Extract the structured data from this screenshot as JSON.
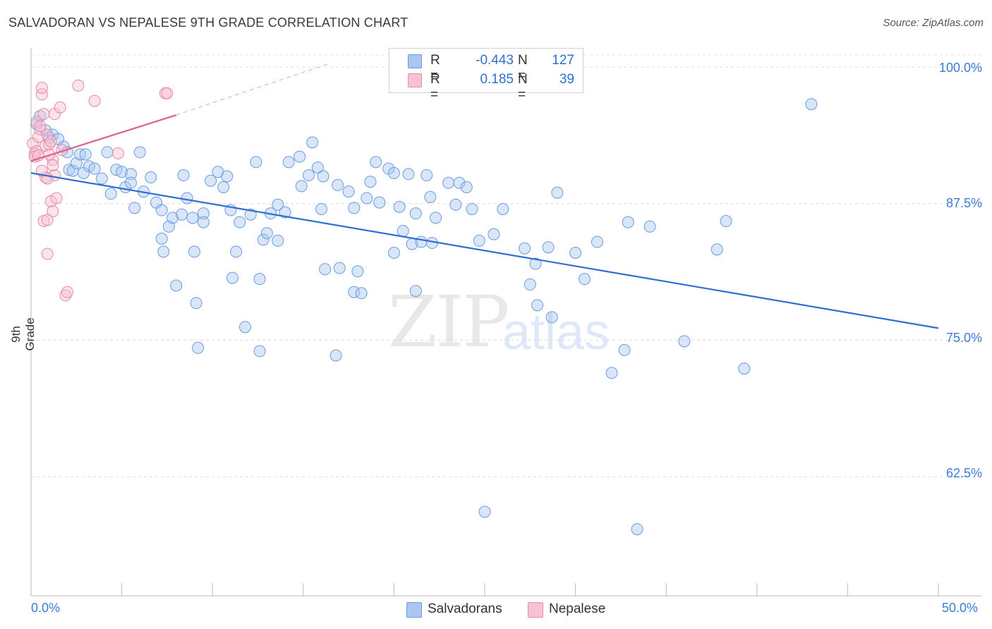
{
  "header": {
    "title": "SALVADORAN VS NEPALESE 9TH GRADE CORRELATION CHART",
    "source": "Source: ZipAtlas.com"
  },
  "watermark": {
    "zip": "ZIP",
    "atlas": "atlas"
  },
  "legend": {
    "rows": [
      {
        "r_label": "R =",
        "r_value": "-0.443",
        "n_label": "N =",
        "n_value": "127",
        "color": "#a9c8ef",
        "border": "#6a9be0"
      },
      {
        "r_label": "R =",
        "r_value": "0.185",
        "n_label": "N =",
        "n_value": "39",
        "color": "#f7c2d3",
        "border": "#e68aa6"
      }
    ]
  },
  "bottom_legend": {
    "items": [
      {
        "label": "Salvadorans",
        "color": "#a9c8ef",
        "border": "#6a9be0"
      },
      {
        "label": "Nepalese",
        "color": "#f7c2d3",
        "border": "#e68aa6"
      }
    ]
  },
  "axes": {
    "y_label": "9th Grade",
    "y_ticks": [
      "100.0%",
      "87.5%",
      "75.0%",
      "62.5%"
    ],
    "x_ticks": [
      "0.0%",
      "50.0%"
    ]
  },
  "chart_data": {
    "type": "scatter",
    "title": "SALVADORAN VS NEPALESE 9TH GRADE CORRELATION CHART",
    "xlabel": "",
    "ylabel": "9th Grade",
    "xlim": [
      0,
      50
    ],
    "ylim": [
      51.6,
      101.1
    ],
    "x_tick_values": [
      0,
      50
    ],
    "y_tick_values": [
      100,
      87.5,
      75,
      62.5
    ],
    "grid": true,
    "series": [
      {
        "name": "Salvadorans",
        "color": "#6a9be0",
        "fill": "rgba(169,200,239,0.45)",
        "trend": {
          "x0": 0,
          "y0": 90.3,
          "x1": 50,
          "y1": 76.1,
          "color": "#2f6fcf"
        },
        "points": [
          [
            0.3,
            94.8
          ],
          [
            0.5,
            95.5
          ],
          [
            0.8,
            94.2
          ],
          [
            1.0,
            93.5
          ],
          [
            1.2,
            93.8
          ],
          [
            1.5,
            93.4
          ],
          [
            1.8,
            92.7
          ],
          [
            2.0,
            92.2
          ],
          [
            2.1,
            90.6
          ],
          [
            2.3,
            90.5
          ],
          [
            2.5,
            91.2
          ],
          [
            2.7,
            92.0
          ],
          [
            2.9,
            90.3
          ],
          [
            3.2,
            90.9
          ],
          [
            3.5,
            90.7
          ],
          [
            3.9,
            89.8
          ],
          [
            4.2,
            92.2
          ],
          [
            4.4,
            88.4
          ],
          [
            4.7,
            90.6
          ],
          [
            5.0,
            90.4
          ],
          [
            5.2,
            89.0
          ],
          [
            5.5,
            90.2
          ],
          [
            5.7,
            87.1
          ],
          [
            6.0,
            92.2
          ],
          [
            6.2,
            88.6
          ],
          [
            6.6,
            89.9
          ],
          [
            6.9,
            87.6
          ],
          [
            7.2,
            86.9
          ],
          [
            7.6,
            85.4
          ],
          [
            7.8,
            86.2
          ],
          [
            8.3,
            86.5
          ],
          [
            8.4,
            90.1
          ],
          [
            8.6,
            88.0
          ],
          [
            8.9,
            86.2
          ],
          [
            9.5,
            86.6
          ],
          [
            9.9,
            89.6
          ],
          [
            10.3,
            90.4
          ],
          [
            10.6,
            89.0
          ],
          [
            10.8,
            90.0
          ],
          [
            11.0,
            86.9
          ],
          [
            11.5,
            85.8
          ],
          [
            12.1,
            86.5
          ],
          [
            12.4,
            91.3
          ],
          [
            12.8,
            84.2
          ],
          [
            13.0,
            84.8
          ],
          [
            13.2,
            86.6
          ],
          [
            13.6,
            87.4
          ],
          [
            14.0,
            86.7
          ],
          [
            14.2,
            91.3
          ],
          [
            14.8,
            91.8
          ],
          [
            14.9,
            89.1
          ],
          [
            15.3,
            90.1
          ],
          [
            15.5,
            93.1
          ],
          [
            15.8,
            90.8
          ],
          [
            16.1,
            90.0
          ],
          [
            16.2,
            81.5
          ],
          [
            16.9,
            89.2
          ],
          [
            17.5,
            88.6
          ],
          [
            17.8,
            87.1
          ],
          [
            18.5,
            88.0
          ],
          [
            18.7,
            89.5
          ],
          [
            19.0,
            91.3
          ],
          [
            19.2,
            87.6
          ],
          [
            19.7,
            90.7
          ],
          [
            20.0,
            90.3
          ],
          [
            20.3,
            87.2
          ],
          [
            20.8,
            90.2
          ],
          [
            21.2,
            86.6
          ],
          [
            21.8,
            90.1
          ],
          [
            22.0,
            88.1
          ],
          [
            22.3,
            86.2
          ],
          [
            23.0,
            89.4
          ],
          [
            23.4,
            87.4
          ],
          [
            23.6,
            89.4
          ],
          [
            24.0,
            89.0
          ],
          [
            24.3,
            87.0
          ],
          [
            7.3,
            83.1
          ],
          [
            9.0,
            83.1
          ],
          [
            11.3,
            83.1
          ],
          [
            13.6,
            84.1
          ],
          [
            11.1,
            80.7
          ],
          [
            12.6,
            80.6
          ],
          [
            17.0,
            81.6
          ],
          [
            18.0,
            81.3
          ],
          [
            20.0,
            83.0
          ],
          [
            20.5,
            85.0
          ],
          [
            21.0,
            83.8
          ],
          [
            21.5,
            84.0
          ],
          [
            22.1,
            83.9
          ],
          [
            7.2,
            84.3
          ],
          [
            8.0,
            80.0
          ],
          [
            9.1,
            78.4
          ],
          [
            11.8,
            76.2
          ],
          [
            9.2,
            74.3
          ],
          [
            12.6,
            74.0
          ],
          [
            16.8,
            73.6
          ],
          [
            17.8,
            79.4
          ],
          [
            18.2,
            79.3
          ],
          [
            21.2,
            79.5
          ],
          [
            24.7,
            84.1
          ],
          [
            25.5,
            84.7
          ],
          [
            27.2,
            83.4
          ],
          [
            27.5,
            80.1
          ],
          [
            27.8,
            82.0
          ],
          [
            27.9,
            78.2
          ],
          [
            28.5,
            83.5
          ],
          [
            28.7,
            77.1
          ],
          [
            29.0,
            88.5
          ],
          [
            30.0,
            83.0
          ],
          [
            30.5,
            80.6
          ],
          [
            31.2,
            84.0
          ],
          [
            32.0,
            72.0
          ],
          [
            32.7,
            74.1
          ],
          [
            32.9,
            85.8
          ],
          [
            34.1,
            85.4
          ],
          [
            36.0,
            74.9
          ],
          [
            37.8,
            83.3
          ],
          [
            38.3,
            85.9
          ],
          [
            39.3,
            72.4
          ],
          [
            43.0,
            96.6
          ],
          [
            25.0,
            59.3
          ],
          [
            33.4,
            57.7
          ],
          [
            3.0,
            92.0
          ],
          [
            5.5,
            89.4
          ],
          [
            9.5,
            85.8
          ],
          [
            16.0,
            87.0
          ],
          [
            26.0,
            87.0
          ]
        ]
      },
      {
        "name": "Nepalese",
        "color": "#e68aa6",
        "fill": "rgba(247,194,211,0.45)",
        "trend": {
          "x0": 0,
          "y0": 91.4,
          "x1": 8.0,
          "y1": 95.6,
          "dash_to_x": 16.4,
          "dash_to_y": 100.3,
          "color": "#e0608a"
        },
        "points": [
          [
            0.1,
            93.0
          ],
          [
            0.2,
            92.1
          ],
          [
            0.3,
            92.3
          ],
          [
            0.4,
            93.6
          ],
          [
            0.5,
            94.3
          ],
          [
            0.6,
            97.5
          ],
          [
            0.6,
            98.1
          ],
          [
            0.7,
            95.7
          ],
          [
            0.8,
            92.8
          ],
          [
            0.9,
            93.8
          ],
          [
            1.0,
            92.9
          ],
          [
            1.1,
            93.2
          ],
          [
            1.2,
            91.5
          ],
          [
            1.3,
            90.1
          ],
          [
            0.8,
            89.9
          ],
          [
            0.9,
            89.8
          ],
          [
            1.1,
            87.7
          ],
          [
            1.2,
            86.8
          ],
          [
            1.4,
            88.0
          ],
          [
            0.7,
            85.9
          ],
          [
            0.9,
            86.0
          ],
          [
            0.9,
            82.9
          ],
          [
            1.9,
            79.1
          ],
          [
            2.0,
            79.4
          ],
          [
            1.3,
            95.7
          ],
          [
            1.6,
            96.3
          ],
          [
            2.6,
            98.3
          ],
          [
            3.5,
            96.9
          ],
          [
            4.8,
            92.1
          ],
          [
            7.4,
            97.6
          ],
          [
            7.5,
            97.6
          ],
          [
            0.3,
            95.0
          ],
          [
            0.5,
            94.6
          ],
          [
            0.2,
            91.8
          ],
          [
            0.4,
            91.9
          ],
          [
            1.0,
            92.0
          ],
          [
            0.6,
            90.5
          ],
          [
            1.2,
            91.0
          ],
          [
            1.7,
            92.4
          ]
        ]
      }
    ]
  }
}
